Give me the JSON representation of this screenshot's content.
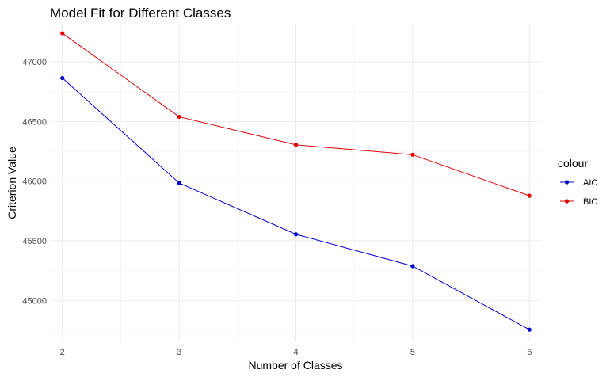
{
  "chart_data": {
    "type": "line",
    "title": "Model Fit for Different Classes",
    "xlabel": "Number of Classes",
    "ylabel": "Criterion Value",
    "x": [
      2,
      3,
      4,
      5,
      6
    ],
    "xlim": [
      1.9,
      6.1
    ],
    "ylim": [
      44650,
      47320
    ],
    "x_ticks": [
      "2",
      "3",
      "4",
      "5",
      "6"
    ],
    "y_ticks": [
      "45000",
      "45500",
      "46000",
      "46500",
      "47000"
    ],
    "grid": true,
    "legend": {
      "title": "colour",
      "placement": "right"
    },
    "series": [
      {
        "name": "AIC",
        "color": "#0000cd",
        "values": [
          46865,
          45985,
          45555,
          45288,
          44755
        ]
      },
      {
        "name": "BIC",
        "color": "#e00000",
        "values": [
          47240,
          46540,
          46305,
          46222,
          45878
        ]
      }
    ]
  }
}
